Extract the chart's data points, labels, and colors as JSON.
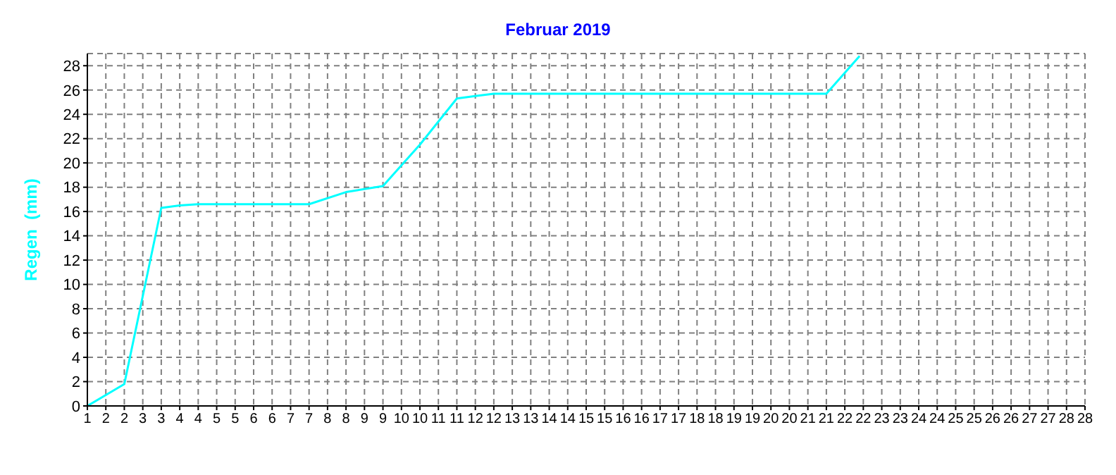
{
  "chart_data": {
    "type": "line",
    "title": "Februar 2019",
    "ylabel": "Regen  (mm)",
    "x": [
      1,
      2,
      3,
      3.5,
      4,
      7,
      8,
      9,
      10,
      11,
      11.5,
      12,
      21,
      21.9
    ],
    "series": [
      {
        "color": "#00ffff",
        "values": [
          0,
          1.8,
          16.3,
          16.5,
          16.6,
          16.6,
          17.6,
          18.1,
          21.5,
          25.3,
          25.5,
          25.7,
          25.7,
          28.8
        ]
      }
    ],
    "xlim": [
      1,
      28
    ],
    "xticks": [
      1,
      {
        "value": 1.5,
        "label": "2"
      },
      2,
      {
        "value": 2.5,
        "label": "3"
      },
      3,
      {
        "value": 3.5,
        "label": "4"
      },
      4,
      {
        "value": 4.5,
        "label": "5"
      },
      5,
      {
        "value": 5.5,
        "label": "6"
      },
      6,
      {
        "value": 6.5,
        "label": "7"
      },
      7,
      {
        "value": 7.5,
        "label": "8"
      },
      8,
      {
        "value": 8.5,
        "label": "9"
      },
      9,
      {
        "value": 9.5,
        "label": "10"
      },
      10,
      {
        "value": 10.5,
        "label": "11"
      },
      11,
      {
        "value": 11.5,
        "label": "12"
      },
      12,
      {
        "value": 12.5,
        "label": "13"
      },
      13,
      {
        "value": 13.5,
        "label": "14"
      },
      14,
      {
        "value": 14.5,
        "label": "15"
      },
      15,
      {
        "value": 15.5,
        "label": "16"
      },
      16,
      {
        "value": 16.5,
        "label": "17"
      },
      17,
      {
        "value": 17.5,
        "label": "18"
      },
      18,
      {
        "value": 18.5,
        "label": "19"
      },
      19,
      {
        "value": 19.5,
        "label": "20"
      },
      20,
      {
        "value": 20.5,
        "label": "21"
      },
      21,
      {
        "value": 21.5,
        "label": "22"
      },
      22,
      {
        "value": 22.5,
        "label": "23"
      },
      23,
      {
        "value": 23.5,
        "label": "24"
      },
      24,
      {
        "value": 24.5,
        "label": "25"
      },
      25,
      {
        "value": 25.5,
        "label": "26"
      },
      26,
      {
        "value": 26.5,
        "label": "27"
      },
      27,
      {
        "value": 27.5,
        "label": "28"
      },
      28
    ],
    "ylim": [
      0,
      29
    ],
    "yticks": [
      0,
      2,
      4,
      6,
      8,
      10,
      12,
      14,
      16,
      18,
      20,
      22,
      24,
      26,
      28
    ],
    "grid": true,
    "marker": "none",
    "line_style": "solid"
  }
}
